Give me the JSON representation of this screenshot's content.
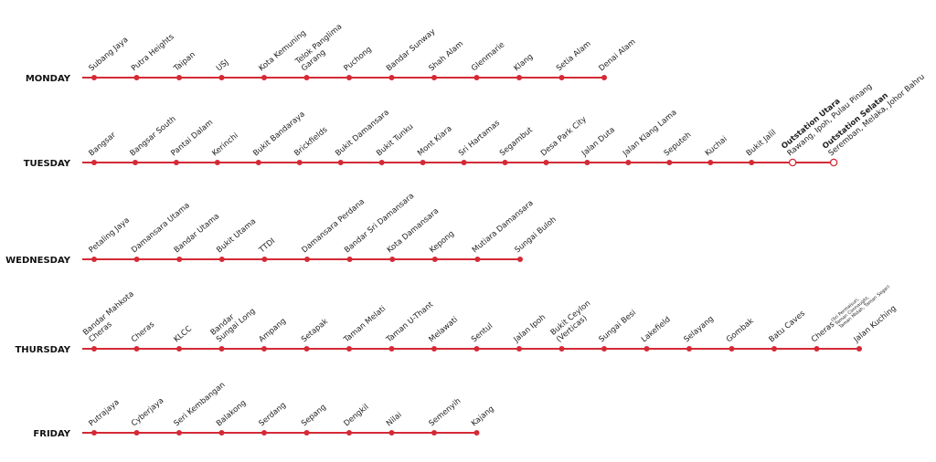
{
  "days": [
    {
      "name": "MONDAY",
      "stops": [
        {
          "lines": [
            "Subang Jaya"
          ]
        },
        {
          "lines": [
            "Putra Heights"
          ]
        },
        {
          "lines": [
            "Taipan"
          ]
        },
        {
          "lines": [
            "USJ"
          ]
        },
        {
          "lines": [
            "Kota Kemuning"
          ]
        },
        {
          "lines": [
            "Telok Panglima",
            "Garang"
          ]
        },
        {
          "lines": [
            "Puchong"
          ]
        },
        {
          "lines": [
            "Bandar Sunway"
          ]
        },
        {
          "lines": [
            "Shah Alam"
          ]
        },
        {
          "lines": [
            "Glenmarie"
          ]
        },
        {
          "lines": [
            "Klang"
          ]
        },
        {
          "lines": [
            "Setia Alam"
          ]
        },
        {
          "lines": [
            "Denai Alam"
          ]
        }
      ]
    },
    {
      "name": "TUESDAY",
      "stops": [
        {
          "lines": [
            "Bangsar"
          ]
        },
        {
          "lines": [
            "Bangsar South"
          ]
        },
        {
          "lines": [
            "Pantai Dalam"
          ]
        },
        {
          "lines": [
            "Kerinchi"
          ]
        },
        {
          "lines": [
            "Bukit Bandaraya"
          ]
        },
        {
          "lines": [
            "Brickfields"
          ]
        },
        {
          "lines": [
            "Bukit Damansara"
          ]
        },
        {
          "lines": [
            "Bukit Tunku"
          ]
        },
        {
          "lines": [
            "Mont Kiara"
          ]
        },
        {
          "lines": [
            "Sri Hartamas"
          ]
        },
        {
          "lines": [
            "Segambut"
          ]
        },
        {
          "lines": [
            "Desa Park City"
          ]
        },
        {
          "lines": [
            "Jalan Duta"
          ]
        },
        {
          "lines": [
            "Jalan Klang Lama"
          ]
        },
        {
          "lines": [
            "Seputeh"
          ]
        },
        {
          "lines": [
            "Kuchai"
          ]
        },
        {
          "lines": [
            "Bukit Jalil"
          ]
        },
        {
          "title": "Outstation Utara",
          "lines": [
            "Rawang, Ipoh, Pulau Pinang"
          ]
        },
        {
          "title": "Outstation Selatan",
          "lines": [
            "Seremban, Melaka, Johor Bahru"
          ]
        }
      ]
    },
    {
      "name": "WEDNESDAY",
      "stops": [
        {
          "lines": [
            "Petaling Jaya"
          ]
        },
        {
          "lines": [
            "Damansara Utama"
          ]
        },
        {
          "lines": [
            "Bandar Utama"
          ]
        },
        {
          "lines": [
            "Bukit Utama"
          ]
        },
        {
          "lines": [
            "TTDI"
          ]
        },
        {
          "lines": [
            "Damansara Perdana"
          ]
        },
        {
          "lines": [
            "Bandar Sri Damansara"
          ]
        },
        {
          "lines": [
            "Kota Damansara"
          ]
        },
        {
          "lines": [
            "Kepong"
          ]
        },
        {
          "lines": [
            "Mutiara Damansara"
          ]
        },
        {
          "lines": [
            "Sungai Buloh"
          ]
        }
      ]
    },
    {
      "name": "THURSDAY",
      "stops": [
        {
          "lines": [
            "Bandar Mahkota",
            "Cheras"
          ]
        },
        {
          "lines": [
            "Cheras"
          ]
        },
        {
          "lines": [
            "KLCC"
          ]
        },
        {
          "lines": [
            "Bandar",
            "Sungai Long"
          ]
        },
        {
          "lines": [
            "Ampang"
          ]
        },
        {
          "lines": [
            "Setapak"
          ]
        },
        {
          "lines": [
            "Taman Melati"
          ]
        },
        {
          "lines": [
            "Taman U-Thant"
          ]
        },
        {
          "lines": [
            "Melawati"
          ]
        },
        {
          "lines": [
            "Sentul"
          ]
        },
        {
          "lines": [
            "Jalan Ipoh"
          ]
        },
        {
          "lines": [
            "Bukit Ceylon",
            "(Verticas)"
          ]
        },
        {
          "lines": [
            "Sungai Besi"
          ]
        },
        {
          "lines": [
            "Lakefield"
          ]
        },
        {
          "lines": [
            "Selayang"
          ]
        },
        {
          "lines": [
            "Gombak"
          ]
        },
        {
          "lines": [
            "Batu Caves"
          ]
        },
        {
          "lines": [
            "Cheras"
          ],
          "note": [
            "(Sri Permaisuri,",
            "Taman Connaught,",
            "Taman Midah, Taman Segar)"
          ]
        },
        {
          "lines": [
            "Jalan Kuching"
          ]
        }
      ]
    },
    {
      "name": "FRIDAY",
      "stops": [
        {
          "lines": [
            "Putrajaya"
          ]
        },
        {
          "lines": [
            "Cyberjaya"
          ]
        },
        {
          "lines": [
            "Seri Kembangan"
          ]
        },
        {
          "lines": [
            "Balakong"
          ]
        },
        {
          "lines": [
            "Serdang"
          ]
        },
        {
          "lines": [
            "Sepang"
          ]
        },
        {
          "lines": [
            "Dengkil"
          ]
        },
        {
          "lines": [
            "Nilai"
          ]
        },
        {
          "lines": [
            "Semenyih"
          ]
        },
        {
          "lines": [
            "Kajang"
          ]
        }
      ]
    }
  ]
}
